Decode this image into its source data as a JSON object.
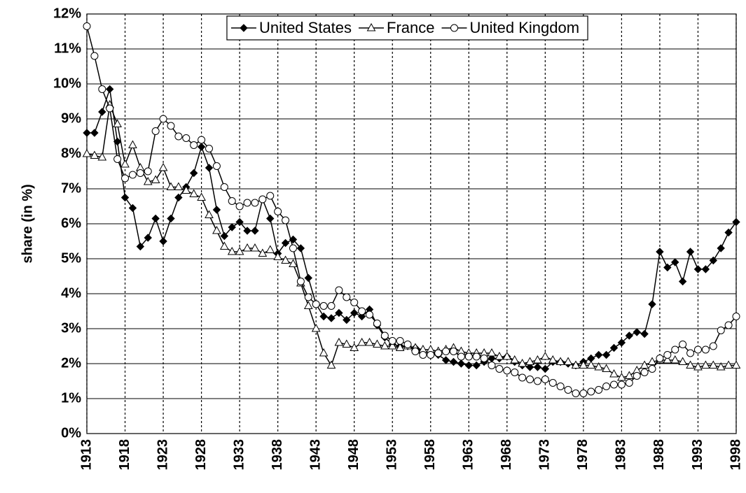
{
  "chart_data": {
    "type": "line",
    "y_label": "share (in %)",
    "legend": "top",
    "grid": true,
    "x": [
      1913,
      1914,
      1915,
      1916,
      1917,
      1918,
      1919,
      1920,
      1921,
      1922,
      1923,
      1924,
      1925,
      1926,
      1927,
      1928,
      1929,
      1930,
      1931,
      1932,
      1933,
      1934,
      1935,
      1936,
      1937,
      1938,
      1939,
      1940,
      1941,
      1942,
      1943,
      1944,
      1945,
      1946,
      1947,
      1948,
      1949,
      1950,
      1951,
      1952,
      1953,
      1954,
      1955,
      1956,
      1957,
      1958,
      1959,
      1960,
      1961,
      1962,
      1963,
      1964,
      1965,
      1966,
      1967,
      1968,
      1969,
      1970,
      1971,
      1972,
      1973,
      1974,
      1975,
      1976,
      1977,
      1978,
      1979,
      1980,
      1981,
      1982,
      1983,
      1984,
      1985,
      1986,
      1987,
      1988,
      1989,
      1990,
      1991,
      1992,
      1993,
      1994,
      1995,
      1996,
      1997,
      1998
    ],
    "xlim": [
      1913,
      1998
    ],
    "xticks": [
      1913,
      1918,
      1923,
      1928,
      1933,
      1938,
      1943,
      1948,
      1953,
      1958,
      1963,
      1968,
      1973,
      1978,
      1983,
      1988,
      1993,
      1998
    ],
    "ylim": [
      0,
      12
    ],
    "yticks": [
      {
        "value": 0,
        "label": "0%"
      },
      {
        "value": 1,
        "label": "1%"
      },
      {
        "value": 2,
        "label": "2%"
      },
      {
        "value": 3,
        "label": "3%"
      },
      {
        "value": 4,
        "label": "4%"
      },
      {
        "value": 5,
        "label": "5%"
      },
      {
        "value": 6,
        "label": "6%"
      },
      {
        "value": 7,
        "label": "7%"
      },
      {
        "value": 8,
        "label": "8%"
      },
      {
        "value": 9,
        "label": "9%"
      },
      {
        "value": 10,
        "label": "10%"
      },
      {
        "value": 11,
        "label": "11%"
      },
      {
        "value": 12,
        "label": "12%"
      }
    ],
    "series": [
      {
        "name": "United States",
        "color": "#000000",
        "marker": "diamond",
        "values": [
          8.6,
          8.6,
          9.2,
          9.85,
          8.35,
          6.75,
          6.45,
          5.35,
          5.6,
          6.15,
          5.5,
          6.15,
          6.75,
          7.05,
          7.45,
          8.2,
          7.6,
          6.4,
          5.65,
          5.9,
          6.05,
          5.8,
          5.8,
          6.7,
          6.15,
          5.15,
          5.45,
          5.55,
          5.3,
          4.45,
          3.7,
          3.35,
          3.3,
          3.45,
          3.25,
          3.45,
          3.35,
          3.55,
          3.1,
          2.75,
          2.55,
          2.5,
          2.5,
          2.45,
          2.35,
          2.3,
          2.25,
          2.1,
          2.05,
          2.0,
          1.95,
          1.95,
          2.05,
          2.15,
          2.15,
          2.2,
          2.05,
          1.95,
          1.9,
          1.9,
          1.85,
          2.05,
          2.05,
          2.0,
          1.95,
          2.05,
          2.15,
          2.25,
          2.25,
          2.45,
          2.6,
          2.8,
          2.9,
          2.85,
          3.7,
          5.2,
          4.75,
          4.9,
          4.35,
          5.2,
          4.7,
          4.7,
          4.95,
          5.3,
          5.75,
          6.05
        ]
      },
      {
        "name": "France",
        "color": "#000000",
        "marker": "triangle",
        "values": [
          8.0,
          7.95,
          7.9,
          9.4,
          8.85,
          7.7,
          8.25,
          7.6,
          7.2,
          7.25,
          7.6,
          7.05,
          7.05,
          6.95,
          6.85,
          6.75,
          6.25,
          5.8,
          5.35,
          5.2,
          5.2,
          5.3,
          5.3,
          5.15,
          5.25,
          5.05,
          4.95,
          4.85,
          4.3,
          3.65,
          3.0,
          2.3,
          1.95,
          2.6,
          2.55,
          2.45,
          2.6,
          2.6,
          2.55,
          2.5,
          2.5,
          2.45,
          2.5,
          2.45,
          2.4,
          2.4,
          2.35,
          2.4,
          2.45,
          2.35,
          2.3,
          2.3,
          2.3,
          2.3,
          2.2,
          2.2,
          2.1,
          2.0,
          2.05,
          2.1,
          2.2,
          2.1,
          2.05,
          2.05,
          1.95,
          1.95,
          1.95,
          1.9,
          1.85,
          1.7,
          1.6,
          1.65,
          1.8,
          1.95,
          2.05,
          2.1,
          2.1,
          2.1,
          2.05,
          1.95,
          1.9,
          1.95,
          1.95,
          1.9,
          1.95,
          1.95
        ]
      },
      {
        "name": "United Kingdom",
        "color": "#000000",
        "marker": "circle",
        "values": [
          11.65,
          10.8,
          9.85,
          9.3,
          7.85,
          7.3,
          7.4,
          7.45,
          7.5,
          8.65,
          9.0,
          8.8,
          8.5,
          8.45,
          8.25,
          8.4,
          8.15,
          7.65,
          7.05,
          6.65,
          6.5,
          6.6,
          6.6,
          6.7,
          6.8,
          6.35,
          6.1,
          5.3,
          4.35,
          3.9,
          3.7,
          3.65,
          3.65,
          4.1,
          3.9,
          3.75,
          3.5,
          3.4,
          3.15,
          2.8,
          2.65,
          2.65,
          2.55,
          2.35,
          2.25,
          2.25,
          2.3,
          2.35,
          2.35,
          2.2,
          2.2,
          2.2,
          2.15,
          1.95,
          1.85,
          1.8,
          1.75,
          1.6,
          1.55,
          1.5,
          1.55,
          1.45,
          1.35,
          1.25,
          1.15,
          1.15,
          1.2,
          1.25,
          1.35,
          1.4,
          1.4,
          1.45,
          1.65,
          1.75,
          1.85,
          2.15,
          2.25,
          2.4,
          2.55,
          2.3,
          2.4,
          2.4,
          2.5,
          2.95,
          3.1,
          3.35
        ]
      }
    ]
  }
}
